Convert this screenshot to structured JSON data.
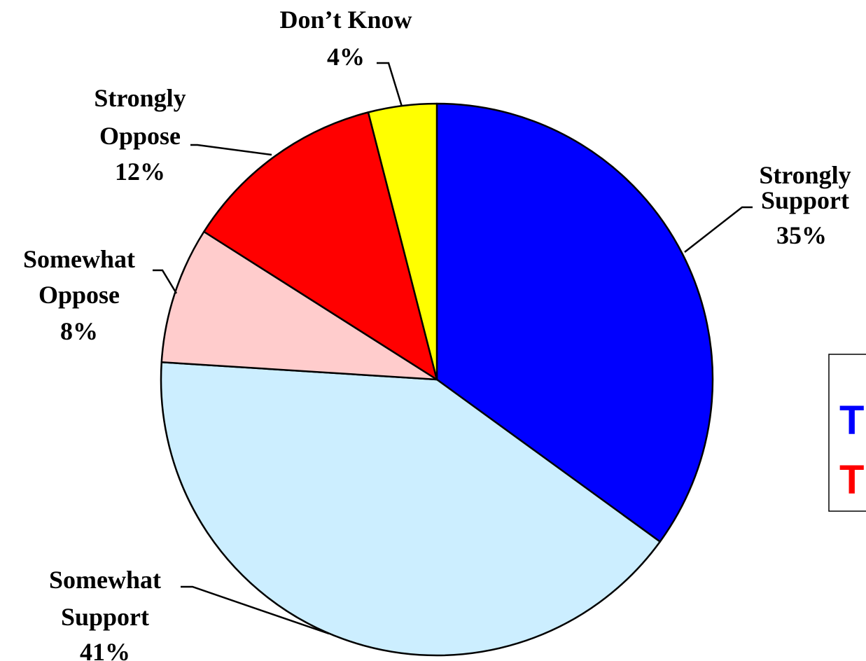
{
  "chart_data": {
    "type": "pie",
    "start_angle_deg": 90,
    "direction": "clockwise",
    "slices": [
      {
        "label": [
          "Strongly",
          "Support"
        ],
        "value": 35,
        "value_label": "35%",
        "color": "#0000ff"
      },
      {
        "label": [
          "Somewhat",
          "Support"
        ],
        "value": 41,
        "value_label": "41%",
        "color": "#cceeff"
      },
      {
        "label": [
          "Somewhat",
          "Oppose"
        ],
        "value": 8,
        "value_label": "8%",
        "color": "#ffcccc"
      },
      {
        "label": [
          "Strongly",
          "Oppose"
        ],
        "value": 12,
        "value_label": "12%",
        "color": "#ff0000"
      },
      {
        "label": [
          "Don’t Know"
        ],
        "value": 4,
        "value_label": "4%",
        "color": "#ffff00"
      }
    ],
    "legend": {
      "entries": [
        {
          "text": "T",
          "color": "#0000ff"
        },
        {
          "text": "T",
          "color": "#ff0000"
        }
      ]
    }
  }
}
